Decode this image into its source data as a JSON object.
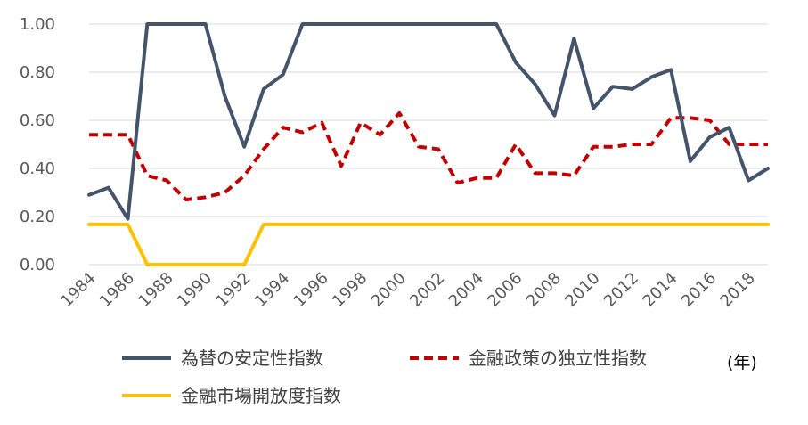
{
  "chart_data": {
    "type": "line",
    "title": "",
    "xlabel": "",
    "ylabel": "",
    "x_unit_label": "(年)",
    "x": [
      1984,
      1985,
      1986,
      1987,
      1988,
      1989,
      1990,
      1991,
      1992,
      1993,
      1994,
      1995,
      1996,
      1997,
      1998,
      1999,
      2000,
      2001,
      2002,
      2003,
      2004,
      2005,
      2006,
      2007,
      2008,
      2009,
      2010,
      2011,
      2012,
      2013,
      2014,
      2015,
      2016,
      2017,
      2018,
      2019
    ],
    "x_tick_labels": [
      "1984",
      "1986",
      "1988",
      "1990",
      "1992",
      "1994",
      "1996",
      "1998",
      "2000",
      "2002",
      "2004",
      "2006",
      "2008",
      "2010",
      "2012",
      "2014",
      "2016",
      "2018"
    ],
    "ylim": [
      0,
      1
    ],
    "y_tick_labels": [
      "0.00",
      "0.20",
      "0.40",
      "0.60",
      "0.80",
      "1.00"
    ],
    "grid": true,
    "legend_position": "bottom",
    "series": [
      {
        "name": "為替の安定性指数",
        "color": "#44546A",
        "dash": "solid",
        "values": [
          0.29,
          0.32,
          0.19,
          1.0,
          1.0,
          1.0,
          1.0,
          0.7,
          0.49,
          0.73,
          0.79,
          1.0,
          1.0,
          1.0,
          1.0,
          1.0,
          1.0,
          1.0,
          1.0,
          1.0,
          1.0,
          1.0,
          0.84,
          0.75,
          0.62,
          0.94,
          0.65,
          0.74,
          0.73,
          0.78,
          0.81,
          0.43,
          0.53,
          0.57,
          0.35,
          0.4
        ]
      },
      {
        "name": "金融政策の独立性指数",
        "color": "#C00000",
        "dash": "dashed",
        "values": [
          0.54,
          0.54,
          0.54,
          0.37,
          0.35,
          0.27,
          0.28,
          0.3,
          0.37,
          0.48,
          0.57,
          0.55,
          0.59,
          0.41,
          0.59,
          0.54,
          0.63,
          0.49,
          0.48,
          0.34,
          0.36,
          0.36,
          0.5,
          0.38,
          0.38,
          0.37,
          0.49,
          0.49,
          0.5,
          0.5,
          0.61,
          0.61,
          0.6,
          0.5,
          0.5,
          0.5
        ]
      },
      {
        "name": "金融市場開放度指数",
        "color": "#FFC000",
        "dash": "solid",
        "values": [
          0.167,
          0.167,
          0.167,
          0,
          0,
          0,
          0,
          0,
          0,
          0.167,
          0.167,
          0.167,
          0.167,
          0.167,
          0.167,
          0.167,
          0.167,
          0.167,
          0.167,
          0.167,
          0.167,
          0.167,
          0.167,
          0.167,
          0.167,
          0.167,
          0.167,
          0.167,
          0.167,
          0.167,
          0.167,
          0.167,
          0.167,
          0.167,
          0.167,
          0.167
        ]
      }
    ]
  }
}
